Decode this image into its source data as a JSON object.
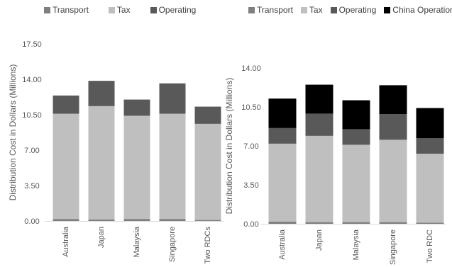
{
  "colors": {
    "Transport": "#7f7f7f",
    "Tax": "#bfbfbf",
    "Operating": "#595959",
    "China Operation": "#000000",
    "axis": "#d9d9d9",
    "text": "#595959"
  },
  "chart_data": [
    {
      "type": "bar",
      "stacked": true,
      "title": "",
      "xlabel": "",
      "ylabel": "Distribution Cost in Dollars (Millions)",
      "ylim": [
        0,
        17.5
      ],
      "yticks": [
        "0.00",
        "3.50",
        "7.00",
        "10.50",
        "14.00",
        "17.50"
      ],
      "yticks_values": [
        0,
        3.5,
        7,
        10.5,
        14,
        17.5
      ],
      "legend_position": "top",
      "grid": false,
      "categories": [
        "Australia",
        "Japan",
        "Malaysia",
        "Singapore",
        "Two RDCs"
      ],
      "series": [
        {
          "name": "Transport",
          "values": [
            0.2,
            0.15,
            0.2,
            0.2,
            0.1
          ]
        },
        {
          "name": "Tax",
          "values": [
            10.4,
            11.2,
            10.2,
            10.4,
            9.5
          ]
        },
        {
          "name": "Operating",
          "values": [
            1.8,
            2.5,
            1.6,
            3.0,
            1.7
          ]
        }
      ]
    },
    {
      "type": "bar",
      "stacked": true,
      "title": "",
      "xlabel": "",
      "ylabel": "Distribution Cost in Dollars (Millions)",
      "ylim": [
        0,
        14
      ],
      "yticks": [
        "0.00",
        "3.50",
        "7.00",
        "10.50",
        "14.00"
      ],
      "yticks_values": [
        0,
        3.5,
        7,
        10.5,
        14
      ],
      "legend_position": "top",
      "grid": false,
      "categories": [
        "Australia",
        "Japan",
        "Malaysia",
        "Singapore",
        "Two RDC"
      ],
      "series": [
        {
          "name": "Transport",
          "values": [
            0.2,
            0.15,
            0.15,
            0.15,
            0.1
          ]
        },
        {
          "name": "Tax",
          "values": [
            7.0,
            7.75,
            6.95,
            7.4,
            6.2
          ]
        },
        {
          "name": "Operating",
          "values": [
            1.4,
            2.0,
            1.4,
            2.3,
            1.4
          ]
        },
        {
          "name": "China Operation",
          "values": [
            2.65,
            2.6,
            2.6,
            2.6,
            2.7
          ]
        }
      ]
    }
  ]
}
